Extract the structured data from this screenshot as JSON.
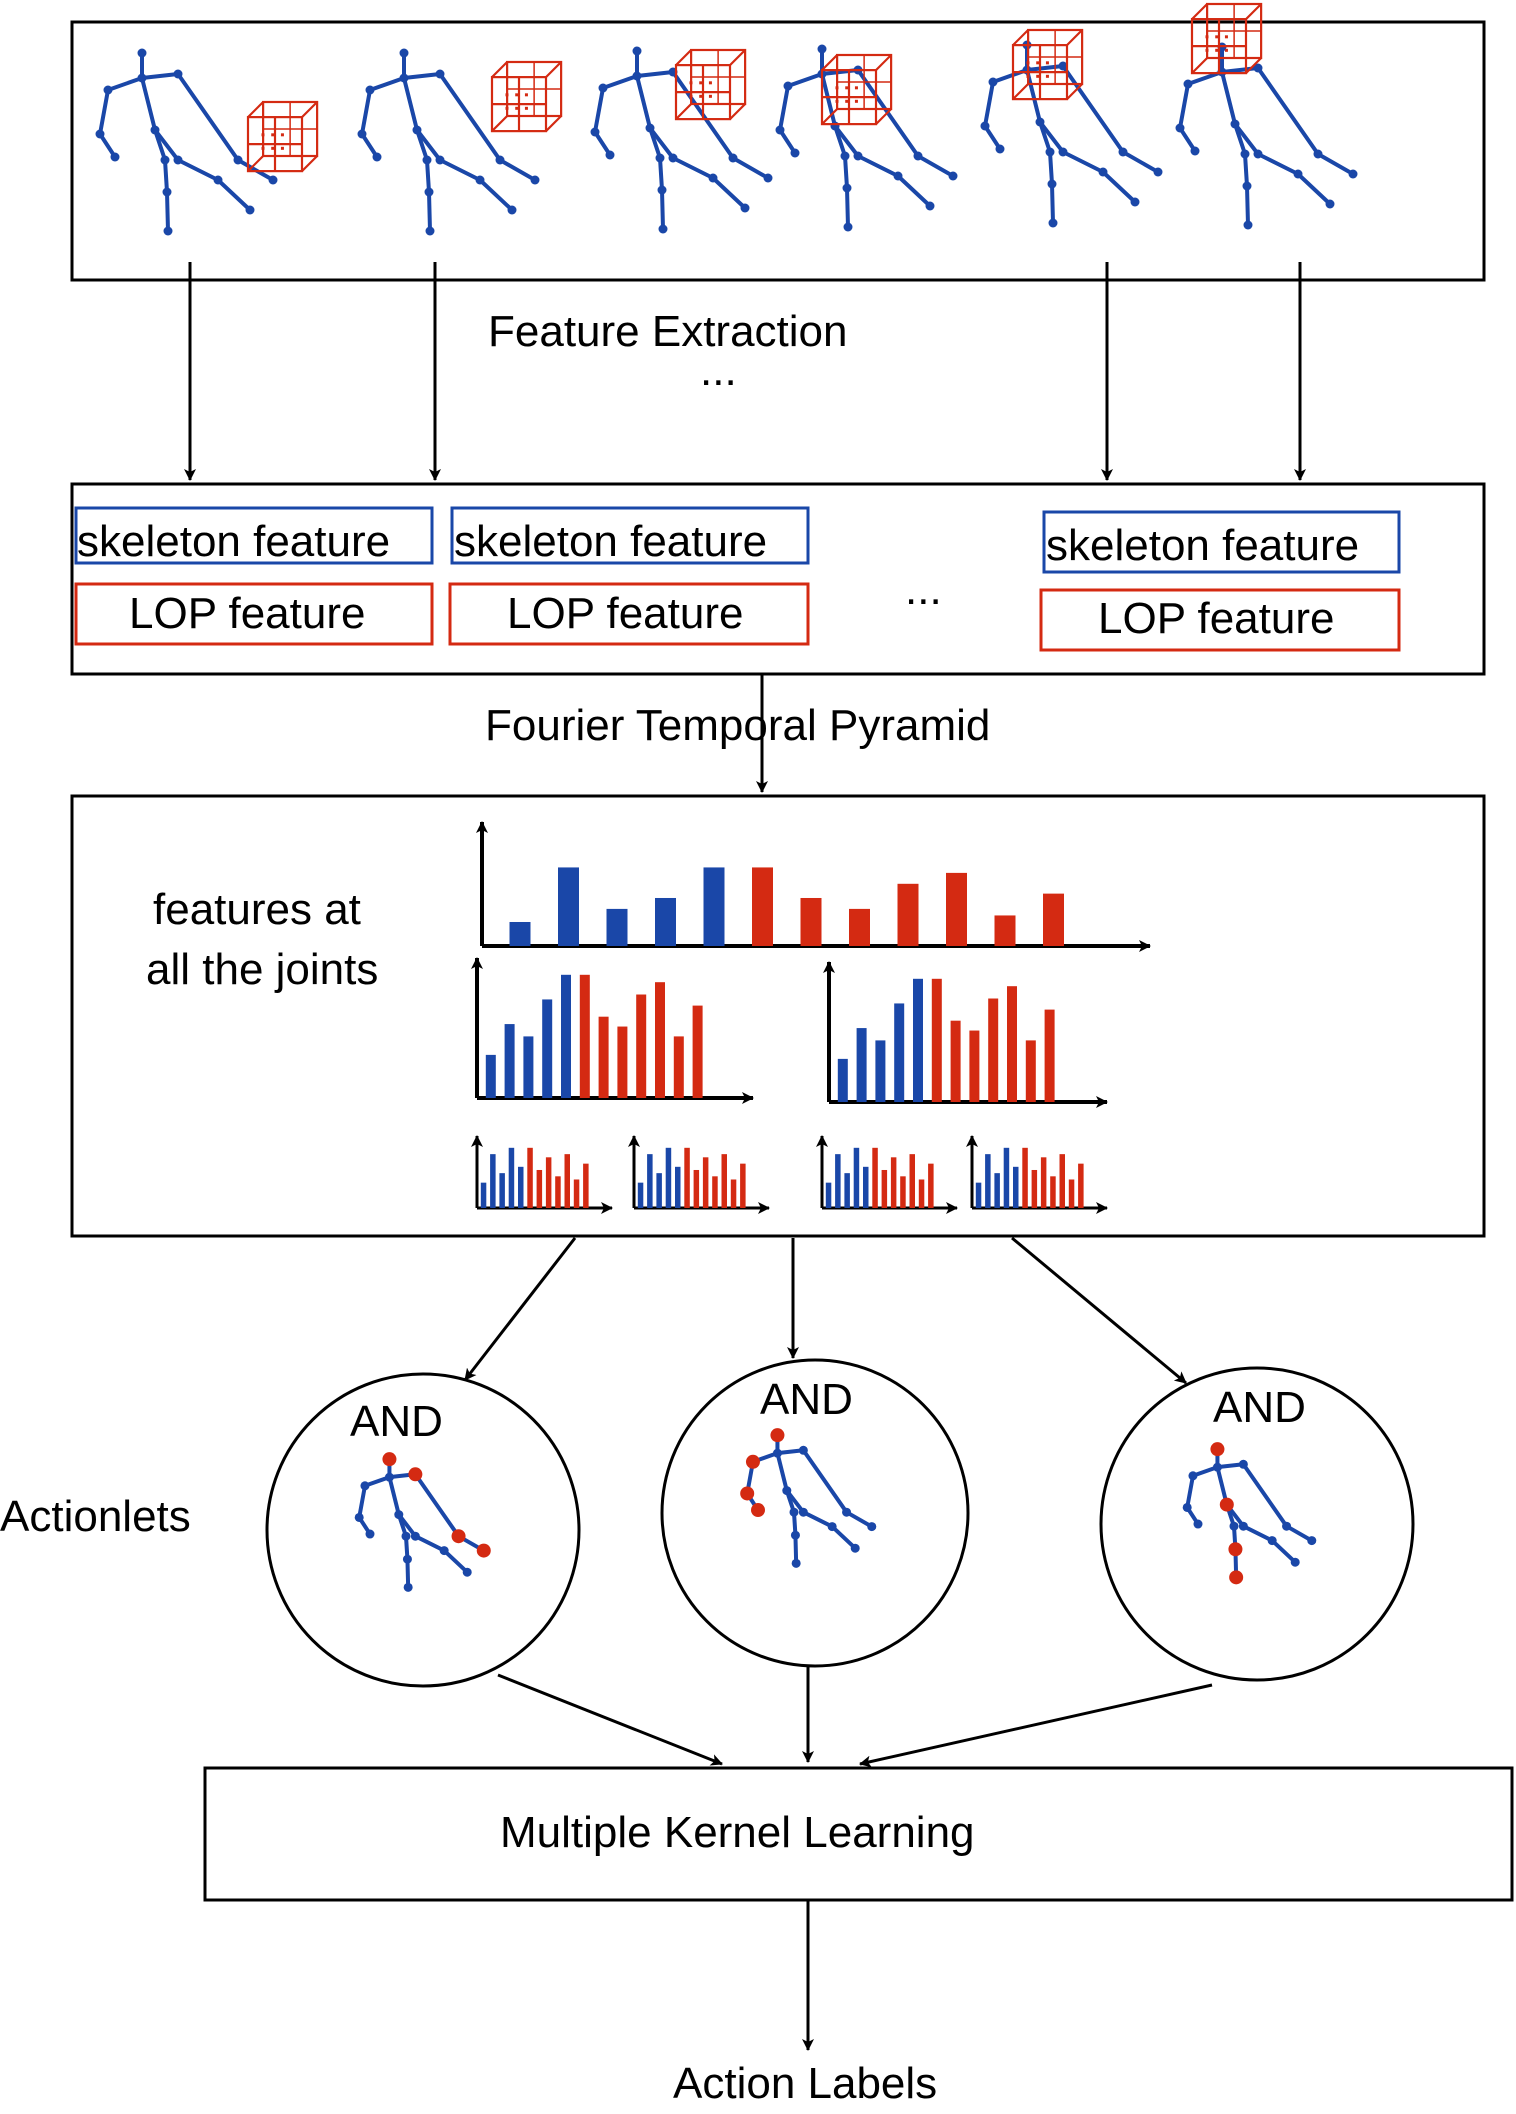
{
  "labels": {
    "feature_extraction": "Feature Extraction",
    "frames_ellipsis": "...",
    "features_ellipsis": "...",
    "skeleton_feature": "skeleton feature",
    "lop_feature": "LOP feature",
    "fourier_temporal_pyramid": "Fourier Temporal Pyramid",
    "features_at_line1": "features at",
    "features_at_line2": "all the joints",
    "and_label": "AND",
    "actionlets": "Actionlets",
    "multiple_kernel_learning": "Multiple Kernel Learning",
    "action_labels": "Action Labels"
  },
  "colors": {
    "skeleton_blue": "#1a47a8",
    "lop_red": "#d42a12",
    "line": "#000000"
  },
  "icons": [
    "skeleton-figure-icon",
    "lop-cube-icon",
    "bar-chart-icon",
    "arrow-icon"
  ],
  "skeleton_feature_boxes": 3,
  "lop_feature_boxes": 3,
  "actionlet_count": 3,
  "pyramid": {
    "level0": {
      "blue": [
        0.22,
        0.72,
        0.34,
        0.44,
        0.72
      ],
      "red": [
        0.72,
        0.44,
        0.34,
        0.57,
        0.67,
        0.28,
        0.48
      ]
    },
    "level1": {
      "blue": [
        0.35,
        0.6,
        0.5,
        0.8,
        1.0
      ],
      "red": [
        1.0,
        0.66,
        0.58,
        0.84,
        0.94,
        0.5,
        0.75
      ]
    },
    "level2": {
      "blue": [
        0.4,
        0.85,
        0.55,
        0.95,
        0.65
      ],
      "red": [
        0.95,
        0.6,
        0.8,
        0.5,
        0.85,
        0.45,
        0.7
      ]
    }
  }
}
